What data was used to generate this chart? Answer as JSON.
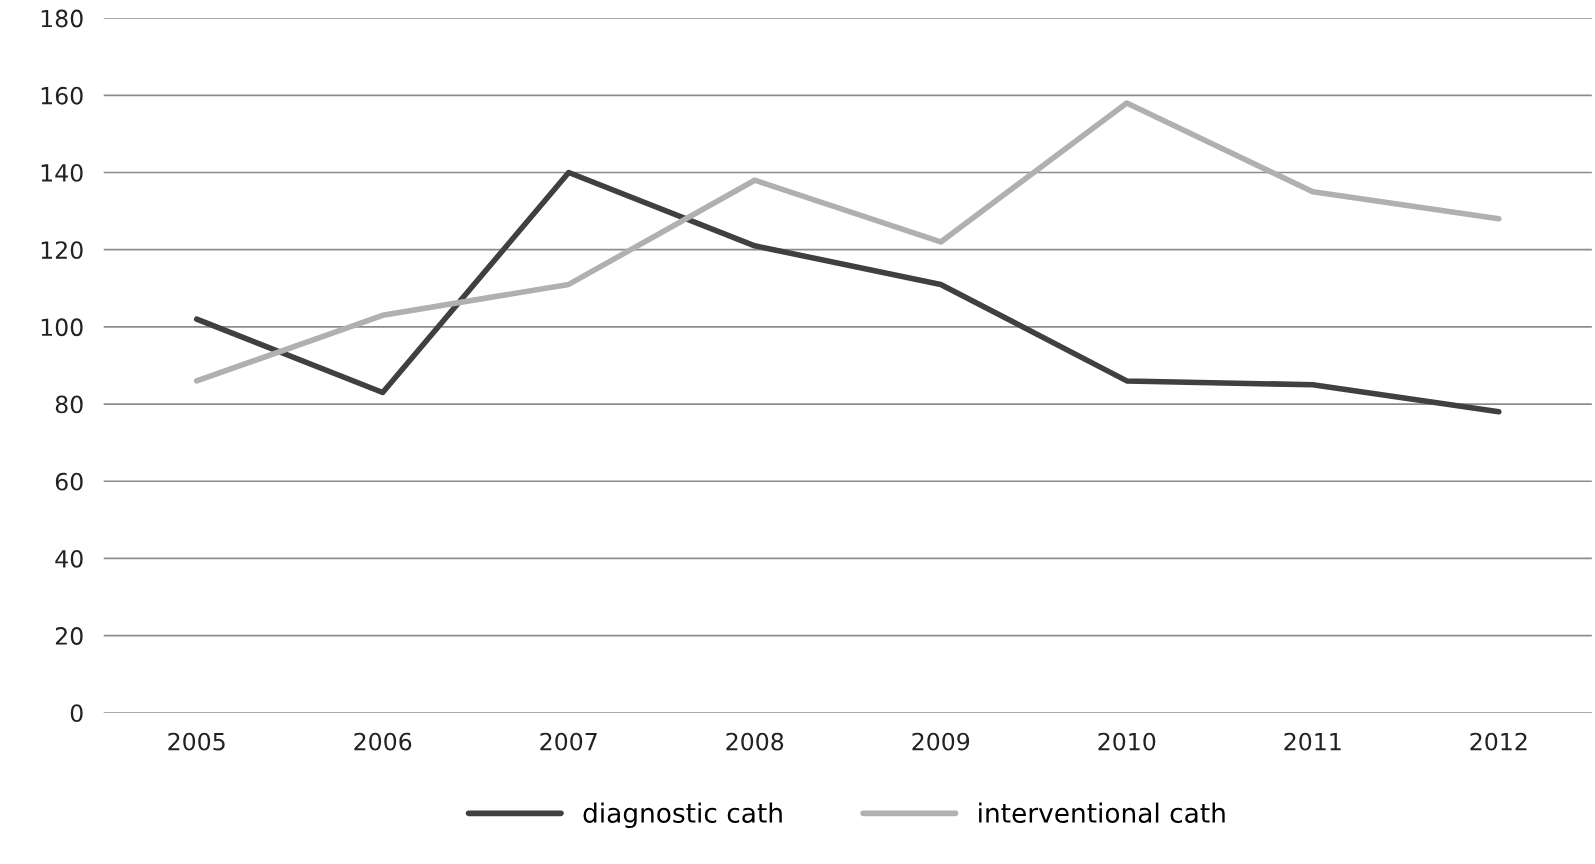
{
  "chart_data": {
    "type": "line",
    "categories": [
      "2005",
      "2006",
      "2007",
      "2008",
      "2009",
      "2010",
      "2011",
      "2012"
    ],
    "series": [
      {
        "name": "diagnostic cath",
        "color": "#404040",
        "values": [
          102,
          83,
          140,
          121,
          111,
          86,
          85,
          78
        ]
      },
      {
        "name": "interventional cath",
        "color": "#b0b0b0",
        "values": [
          86,
          103,
          111,
          138,
          122,
          158,
          135,
          128
        ]
      }
    ],
    "ylim": [
      0,
      180
    ],
    "yticks": [
      0,
      20,
      40,
      60,
      80,
      100,
      120,
      140,
      160,
      180
    ],
    "grid": "y",
    "legend": "bottom",
    "marker": "none",
    "line_style": "solid"
  }
}
